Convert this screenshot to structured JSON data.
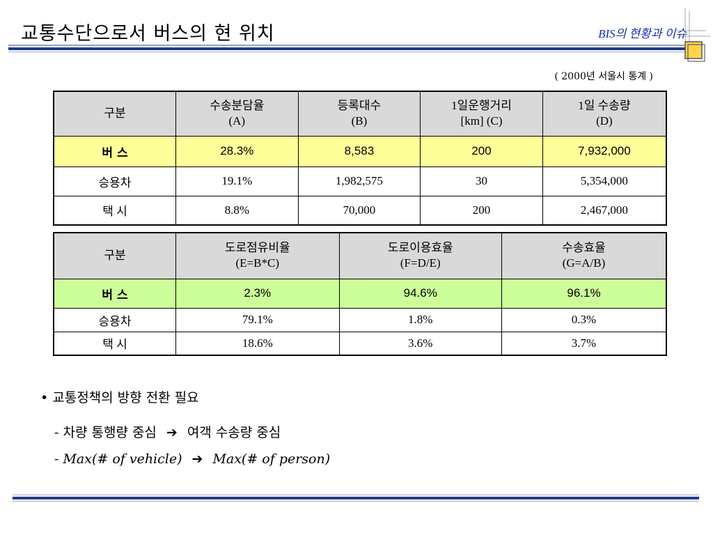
{
  "header": {
    "title": "교통수단으로서 버스의 현 위치",
    "subtitle": "BIS의 현황과 이슈",
    "note": "( 2000년 서울시 통계 )"
  },
  "table1": {
    "headers": [
      {
        "line1": "구분",
        "line2": ""
      },
      {
        "line1": "수송분담율",
        "line2": "(A)"
      },
      {
        "line1": "등록대수",
        "line2": "(B)"
      },
      {
        "line1": "1일운행거리",
        "line2": "[km] (C)"
      },
      {
        "line1": "1일 수송량",
        "line2": "(D)"
      }
    ],
    "rows": [
      [
        "버  스",
        "28.3%",
        "8,583",
        "200",
        "7,932,000"
      ],
      [
        "승용차",
        "19.1%",
        "1,982,575",
        "30",
        "5,354,000"
      ],
      [
        "택  시",
        "8.8%",
        "70,000",
        "200",
        "2,467,000"
      ]
    ]
  },
  "table2": {
    "headers": [
      {
        "line1": "구분",
        "line2": ""
      },
      {
        "line1": "도로점유비율",
        "line2": "(E=B*C)"
      },
      {
        "line1": "도로이용효율",
        "line2": "(F=D/E)"
      },
      {
        "line1": "수송효율",
        "line2": "(G=A/B)"
      }
    ],
    "rows": [
      [
        "버  스",
        "2.3%",
        "94.6%",
        "96.1%"
      ],
      [
        "승용차",
        "79.1%",
        "1.8%",
        "0.3%"
      ],
      [
        "택  시",
        "18.6%",
        "3.6%",
        "3.7%"
      ]
    ]
  },
  "bullets": {
    "main": "• 교통정책의 방향 전환 필요",
    "sub1_left": "- 차량 통행량 중심",
    "sub1_right": "여객 수송량 중심",
    "sub2_left": "- Max(# of vehicle)",
    "sub2_right": "Max(# of person)",
    "arrow_glyph": "➔"
  },
  "colors": {
    "accent_blue": "#1a2fa8",
    "highlight_yellow": "#ffff99",
    "highlight_green": "#ccff99",
    "header_gray": "#d9d9d9"
  }
}
